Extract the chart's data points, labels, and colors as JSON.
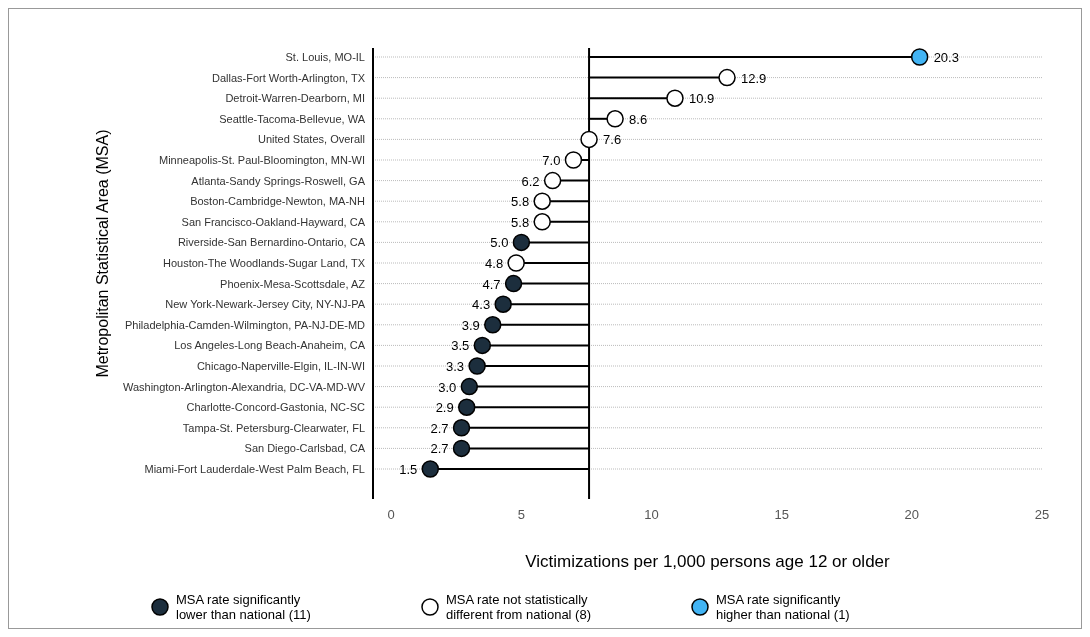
{
  "chart_data": {
    "type": "lollipop",
    "orientation": "horizontal",
    "xlabel": "Victimizations per 1,000 persons age 12 or older",
    "ylabel": "Metropolitan Statistical Area (MSA)",
    "categories": [
      "St. Louis, MO-IL",
      "Dallas-Fort Worth-Arlington, TX",
      "Detroit-Warren-Dearborn, MI",
      "Seattle-Tacoma-Bellevue, WA",
      "United States, Overall",
      "Minneapolis-St. Paul-Bloomington, MN-WI",
      "Atlanta-Sandy Springs-Roswell, GA",
      "Boston-Cambridge-Newton, MA-NH",
      "San Francisco-Oakland-Hayward, CA",
      "Riverside-San Bernardino-Ontario, CA",
      "Houston-The Woodlands-Sugar Land, TX",
      "Phoenix-Mesa-Scottsdale, AZ",
      "New York-Newark-Jersey City, NY-NJ-PA",
      "Philadelphia-Camden-Wilmington, PA-NJ-DE-MD",
      "Los Angeles-Long Beach-Anaheim, CA",
      "Chicago-Naperville-Elgin, IL-IN-WI",
      "Washington-Arlington-Alexandria, DC-VA-MD-WV",
      "Charlotte-Concord-Gastonia, NC-SC",
      "Tampa-St. Petersburg-Clearwater, FL",
      "San Diego-Carlsbad, CA",
      "Miami-Fort Lauderdale-West Palm Beach, FL"
    ],
    "series": [
      {
        "name": "MSA rate significantly lower than national (11)",
        "color": "#1c2e3d",
        "values": [
          null,
          null,
          null,
          null,
          null,
          null,
          null,
          null,
          null,
          5.0,
          null,
          4.7,
          4.3,
          3.9,
          3.5,
          3.3,
          3.0,
          2.9,
          2.7,
          2.7,
          1.5
        ],
        "value_labels": [
          null,
          null,
          null,
          null,
          null,
          null,
          null,
          null,
          null,
          "5.0",
          null,
          "4.7",
          "4.3",
          "3.9",
          "3.5",
          "3.3",
          "3.0",
          "2.9",
          "2.7",
          "2.7",
          "1.5"
        ]
      },
      {
        "name": "MSA rate not statistically different from national (8)",
        "color": "#ffffff",
        "values": [
          null,
          12.9,
          10.9,
          8.6,
          7.6,
          7.0,
          6.2,
          5.8,
          5.8,
          null,
          4.8,
          null,
          null,
          null,
          null,
          null,
          null,
          null,
          null,
          null,
          null
        ],
        "value_labels": [
          null,
          "12.9",
          "10.9",
          "8.6",
          "7.6",
          "7.0",
          "6.2",
          "5.8",
          "5.8",
          null,
          "4.8",
          null,
          null,
          null,
          null,
          null,
          null,
          null,
          null,
          null,
          null
        ]
      },
      {
        "name": "MSA rate significantly higher than national (1)",
        "color": "#42b4f4",
        "values": [
          20.3,
          null,
          null,
          null,
          null,
          null,
          null,
          null,
          null,
          null,
          null,
          null,
          null,
          null,
          null,
          null,
          null,
          null,
          null,
          null,
          null
        ],
        "value_labels": [
          "20.3",
          null,
          null,
          null,
          null,
          null,
          null,
          null,
          null,
          null,
          null,
          null,
          null,
          null,
          null,
          null,
          null,
          null,
          null,
          null,
          null
        ]
      }
    ],
    "ref_lines": [
      {
        "axis": "x",
        "value": 7.6,
        "color": "#000000"
      }
    ],
    "xlim": [
      -0.7,
      25
    ],
    "xticks": [
      0,
      5,
      10,
      15,
      20,
      25
    ],
    "grid": "y",
    "legend": "bottom",
    "marker": "circle"
  }
}
